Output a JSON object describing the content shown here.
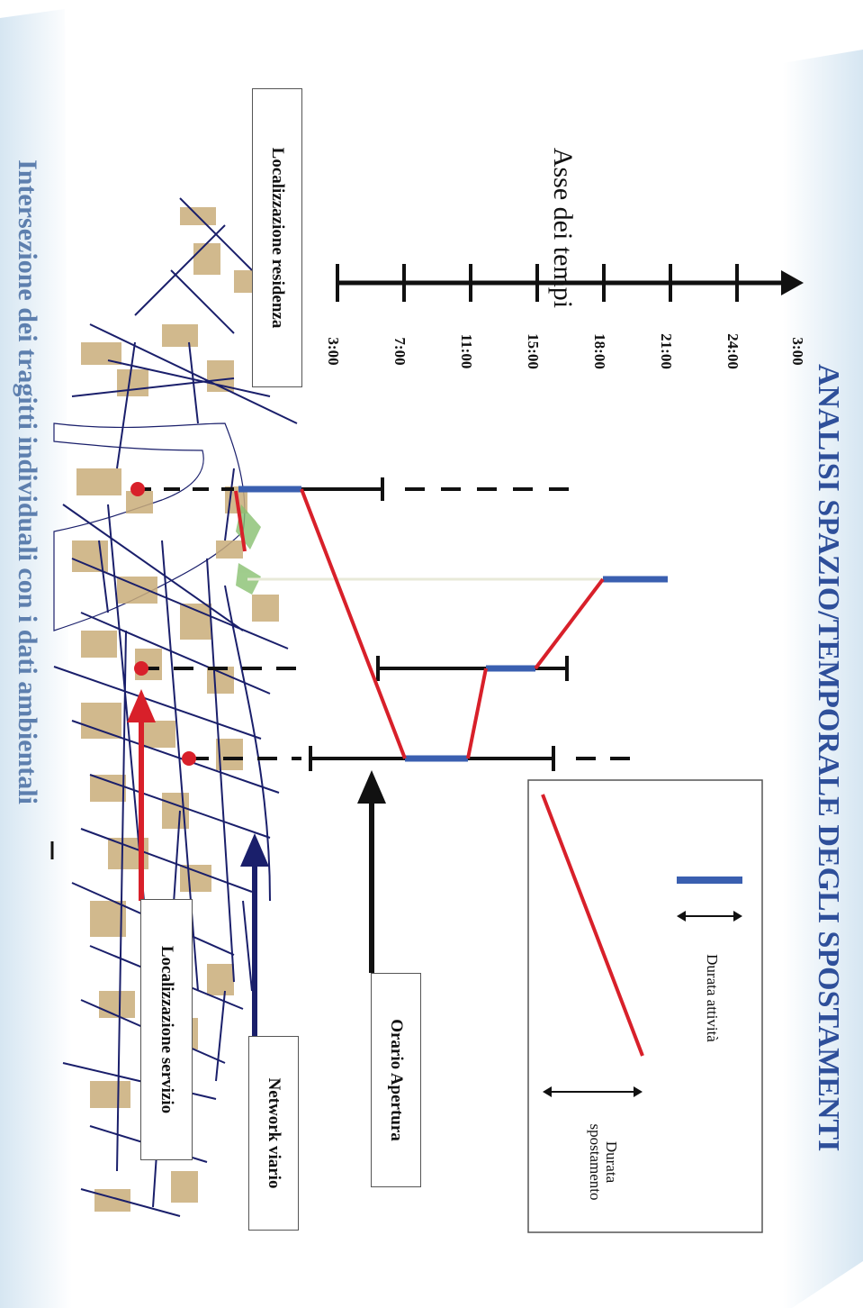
{
  "title": "ANALISI SPAZIO/TEMPORALE DEGLI SPOSTAMENTI",
  "subtitle": "Intersezione dei tragitti individuali con i dati ambientali",
  "time_axis": {
    "label": "Asse dei tempi",
    "ticks": [
      "3:00",
      "7:00",
      "11:00",
      "15:00",
      "18:00",
      "21:00",
      "24:00",
      "3:00"
    ]
  },
  "labels": {
    "residence": "Localizzazione residenza",
    "service": "Localizzazione servizio",
    "network": "Network viario",
    "opening": "Orario Apertura"
  },
  "legend": {
    "activity": "Durata attività",
    "travel_line1": "Durata",
    "travel_line2": "spostamento"
  },
  "colors": {
    "title": "#2e4f9a",
    "subtitle": "#5d7fae",
    "activity": "#3a5fb0",
    "travel": "#d8202a",
    "network": "#1a1f6b",
    "buildings": "#c9ad7a",
    "residence_arrow": "#d8202a",
    "network_arrow": "#1a1f6b"
  }
}
